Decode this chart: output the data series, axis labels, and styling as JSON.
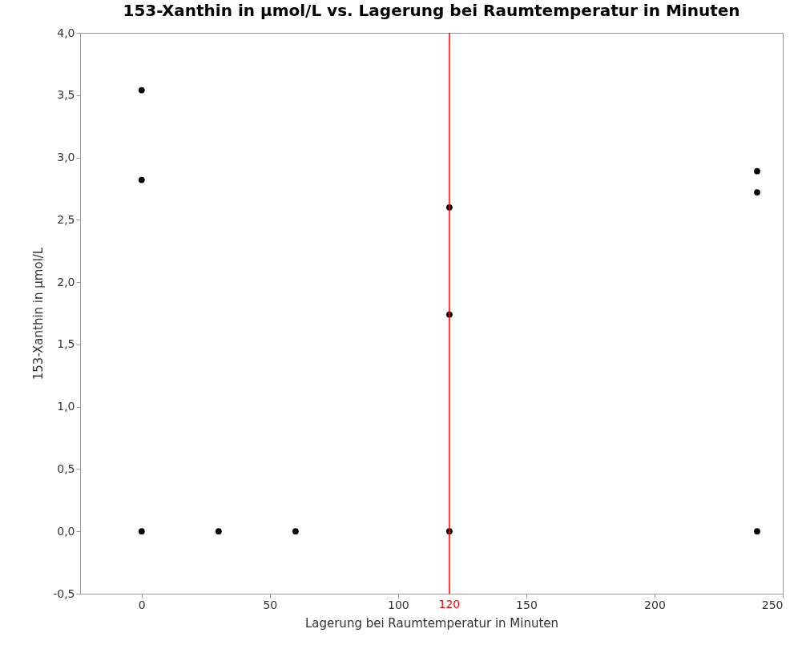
{
  "chart_data": {
    "type": "scatter",
    "title": "153-Xanthin in µmol/L vs. Lagerung bei Raumtemperatur in Minuten",
    "xlabel": "Lagerung bei Raumtemperatur in Minuten",
    "ylabel": "153-Xanthin in µmol/L",
    "x": [
      0,
      0,
      0,
      30,
      60,
      120,
      120,
      120,
      240,
      240,
      240
    ],
    "series": [
      {
        "color": "#000000",
        "values": [
          3.54,
          2.82,
          0,
          0,
          0,
          2.6,
          1.74,
          0,
          2.89,
          2.72,
          0
        ]
      }
    ],
    "xlim": [
      -24,
      250
    ],
    "xticks": [
      0,
      50,
      100,
      150,
      200,
      250
    ],
    "ylim": [
      -0.5,
      4.0
    ],
    "yticks": [
      {
        "value": -0.5,
        "label": "-0,5"
      },
      {
        "value": 0,
        "label": "0,0"
      },
      {
        "value": 0.5,
        "label": "0,5"
      },
      {
        "value": 1,
        "label": "1,0"
      },
      {
        "value": 1.5,
        "label": "1,5"
      },
      {
        "value": 2,
        "label": "2,0"
      },
      {
        "value": 2.5,
        "label": "2,5"
      },
      {
        "value": 3,
        "label": "3,0"
      },
      {
        "value": 3.5,
        "label": "3,5"
      },
      {
        "value": 4,
        "label": "4,0"
      }
    ],
    "ref_lines": [
      {
        "axis": "x",
        "value": 120,
        "label": "120",
        "color": "#ff0000"
      }
    ],
    "marker": "circle",
    "grid": false
  }
}
